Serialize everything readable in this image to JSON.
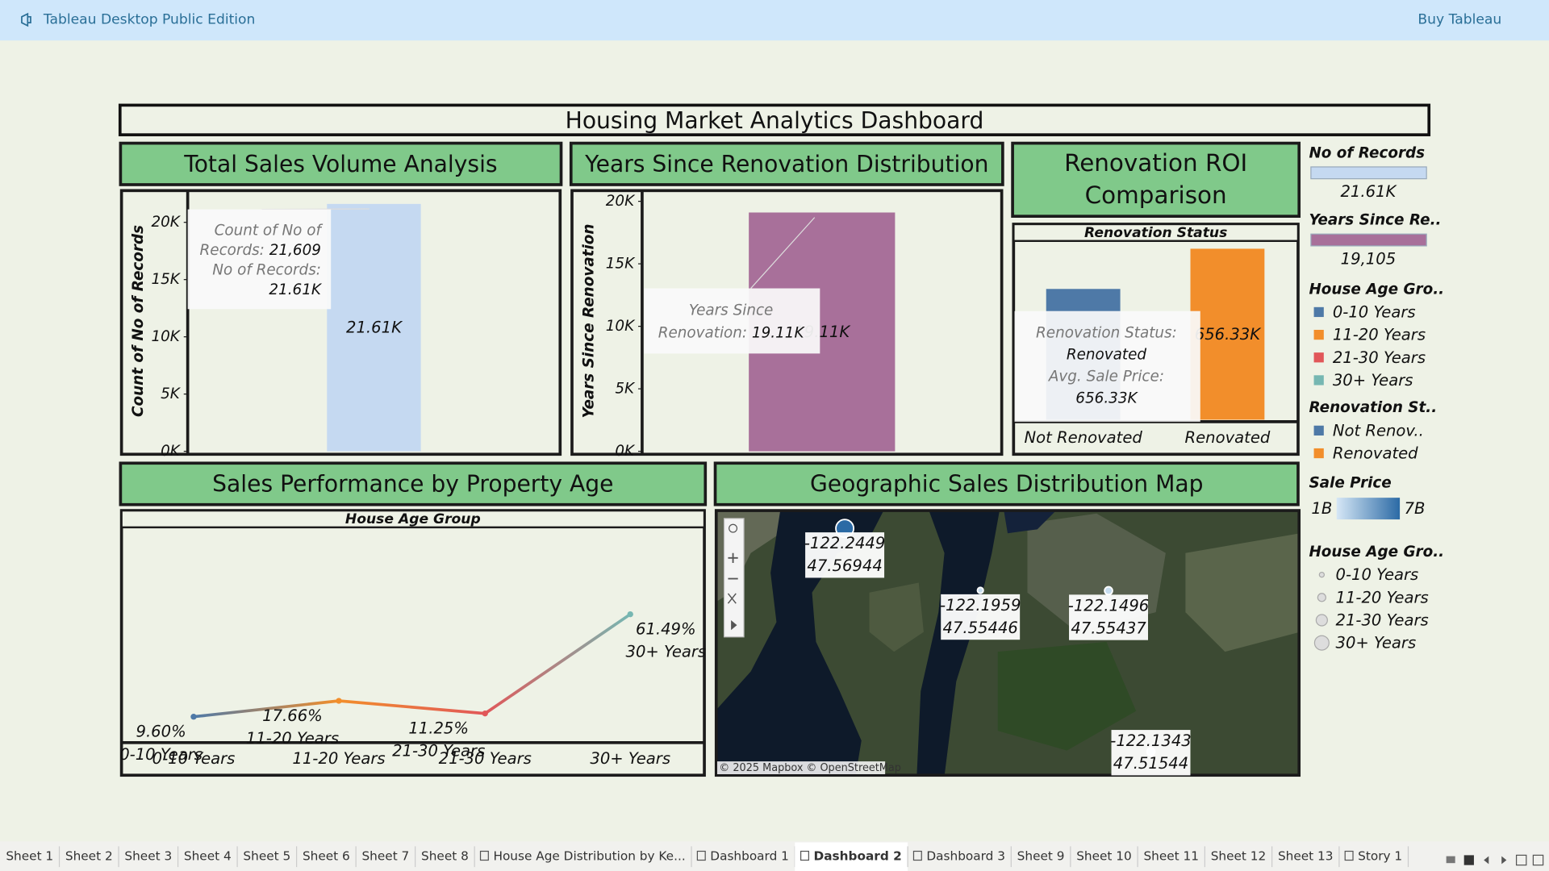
{
  "topbar": {
    "app_name": "Tableau Desktop Public Edition",
    "buy_button": "Buy Tableau"
  },
  "dashboard": {
    "title": "Housing Market Analytics Dashboard",
    "charts": [
      {
        "type": "bar",
        "title": "Total Sales Volume Analysis",
        "y_label": "Count of No of Records",
        "values": [
          21609
        ],
        "value_labels": [
          "21.61K"
        ],
        "color": "#c5d9f1",
        "ylim": [
          0,
          22600
        ],
        "yticks": [
          {
            "value": 0,
            "label": "0K"
          },
          {
            "value": 5000,
            "label": "5K"
          },
          {
            "value": 10000,
            "label": "10K"
          },
          {
            "value": 15000,
            "label": "15K"
          },
          {
            "value": 20000,
            "label": "20K"
          }
        ],
        "tooltip": [
          [
            {
              "label": "Count of No of"
            }
          ],
          [
            {
              "label": "Records:",
              "value": "21,609"
            }
          ],
          [
            {
              "label": "No of Records:"
            }
          ],
          [
            {
              "value": "21.61K"
            }
          ]
        ]
      },
      {
        "type": "bar",
        "title": "Years Since Renovation Distribution",
        "y_label": "Years Since Renovation",
        "values": [
          19105
        ],
        "value_labels": [
          "19.11K"
        ],
        "color": "#a8709a",
        "ylim": [
          0,
          20700
        ],
        "yticks": [
          {
            "value": 0,
            "label": "0K"
          },
          {
            "value": 5000,
            "label": "5K"
          },
          {
            "value": 10000,
            "label": "10K"
          },
          {
            "value": 15000,
            "label": "15K"
          },
          {
            "value": 20000,
            "label": "20K"
          }
        ],
        "tooltip": [
          [
            {
              "label": "Years Since"
            }
          ],
          [
            {
              "label": "Renovation:",
              "value": "19.11K"
            }
          ]
        ]
      },
      {
        "type": "bar",
        "title": "Renovation ROI Comparison",
        "header": "Renovation Status",
        "categories": [
          "Not Renovated",
          "Renovated"
        ],
        "values": [
          502000,
          656330
        ],
        "value_labels": [
          null,
          "656.33K"
        ],
        "colors": [
          "#4e79a7",
          "#f28e2b"
        ],
        "ylim": [
          0,
          690000
        ],
        "tooltip": [
          [
            {
              "label": "Renovation Status:"
            }
          ],
          [
            {
              "value": "Renovated"
            }
          ],
          [
            {
              "label": "Avg. Sale Price:"
            }
          ],
          [
            {
              "value": "656.33K"
            }
          ]
        ]
      },
      {
        "type": "line",
        "title": "Sales Performance by Property Age",
        "header": "House Age Group",
        "categories": [
          "0-10 Years",
          "11-20 Years",
          "21-30 Years",
          "30+ Years"
        ],
        "values": [
          9.6,
          17.66,
          11.25,
          61.49
        ],
        "value_labels": [
          "9.60%",
          "17.66%",
          "11.25%",
          "61.49%"
        ],
        "colors": [
          "#4e79a7",
          "#f28e2b",
          "#e15759",
          "#76b7b2"
        ],
        "ylim": [
          0,
          100
        ]
      },
      {
        "type": "map",
        "title": "Geographic Sales Distribution Map",
        "xlim": [
          -122.2917,
          -122.0804
        ],
        "ylim": [
          47.5095,
          47.574
        ],
        "points": [
          {
            "lon": -122.2449,
            "lat": 47.56944
          },
          {
            "lon": -122.1959,
            "lat": 47.55446
          },
          {
            "lon": -122.1496,
            "lat": 47.55437
          },
          {
            "lon": -122.1343,
            "lat": 47.51544
          }
        ],
        "attribution": "© 2025 Mapbox © OpenStreetMap"
      }
    ],
    "legends": [
      {
        "title": "No of Records",
        "swatch": "#c5d9f1",
        "label": "21.61K"
      },
      {
        "title": "Years Since Re..",
        "swatch": "#a8709a",
        "label": "19,105"
      },
      {
        "title": "House Age Gro..",
        "items": [
          {
            "name": "0-10 Years",
            "color": "#4e79a7"
          },
          {
            "name": "11-20 Years",
            "color": "#f28e2b"
          },
          {
            "name": "21-30 Years",
            "color": "#e15759"
          },
          {
            "name": "30+ Years",
            "color": "#76b7b2"
          }
        ]
      },
      {
        "title": "Renovation St..",
        "items": [
          {
            "name": "Not Renov..",
            "color": "#4e79a7"
          },
          {
            "name": "Renovated",
            "color": "#f28e2b"
          }
        ]
      },
      {
        "title": "Sale Price",
        "min": "1B",
        "max": "7B",
        "colors": [
          "#d6e7f6",
          "#2b6aa5"
        ]
      },
      {
        "title": "House Age Gro..",
        "sizes": [
          "0-10 Years",
          "11-20 Years",
          "21-30 Years",
          "30+ Years"
        ]
      }
    ]
  },
  "tabs": [
    {
      "label": "Sheet 1",
      "kind": "sheet"
    },
    {
      "label": "Sheet 2",
      "kind": "sheet"
    },
    {
      "label": "Sheet 3",
      "kind": "sheet"
    },
    {
      "label": "Sheet 4",
      "kind": "sheet"
    },
    {
      "label": "Sheet 5",
      "kind": "sheet"
    },
    {
      "label": "Sheet 6",
      "kind": "sheet"
    },
    {
      "label": "Sheet 7",
      "kind": "sheet"
    },
    {
      "label": "Sheet 8",
      "kind": "sheet"
    },
    {
      "label": "House Age Distribution by Ke...",
      "kind": "dashboard"
    },
    {
      "label": "Dashboard 1",
      "kind": "dashboard"
    },
    {
      "label": "Dashboard 2",
      "kind": "dashboard",
      "active": true
    },
    {
      "label": "Dashboard 3",
      "kind": "dashboard"
    },
    {
      "label": "Sheet 9",
      "kind": "sheet"
    },
    {
      "label": "Sheet 10",
      "kind": "sheet"
    },
    {
      "label": "Sheet 11",
      "kind": "sheet"
    },
    {
      "label": "Sheet 12",
      "kind": "sheet"
    },
    {
      "label": "Sheet 13",
      "kind": "sheet"
    },
    {
      "label": "Story 1",
      "kind": "story"
    }
  ]
}
